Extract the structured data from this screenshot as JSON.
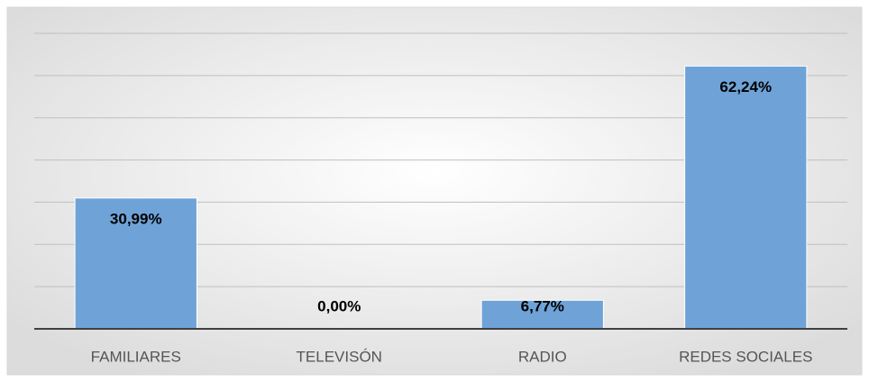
{
  "chart_data": {
    "type": "bar",
    "categories": [
      "FAMILIARES",
      "TELEVISÓN",
      "RADIO",
      "REDES SOCIALES"
    ],
    "values": [
      30.99,
      0,
      6.77,
      62.24
    ],
    "value_labels": [
      "30,99%",
      "0,00%",
      "6,77%",
      "62,24%"
    ],
    "color": "#6fa3d8",
    "ylim": [
      0,
      70
    ],
    "yticks": [
      0,
      10,
      20,
      30,
      40,
      50,
      60,
      70
    ],
    "grid": true
  }
}
